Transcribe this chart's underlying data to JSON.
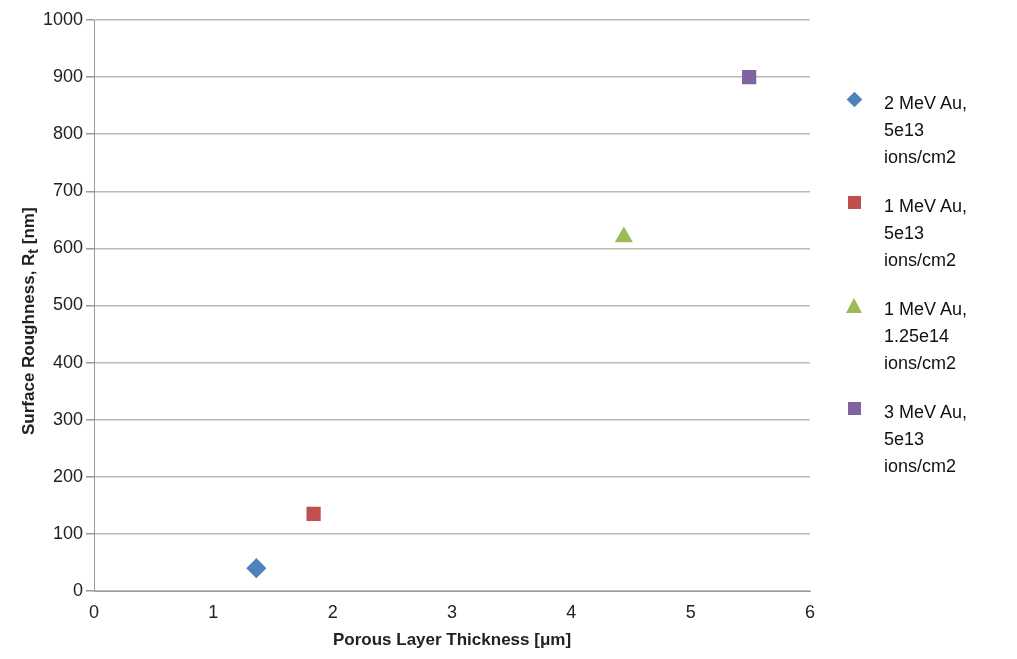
{
  "chart_data": {
    "type": "scatter",
    "xlabel": "Porous Layer Thickness [μm]",
    "ylabel": "Surface Roughness, R$_{t}$  [nm]",
    "xlim": [
      0,
      6
    ],
    "xticks": [
      0,
      1,
      2,
      3,
      4,
      5,
      6
    ],
    "ylim": [
      0,
      1000
    ],
    "yticks": [
      0,
      100,
      200,
      300,
      400,
      500,
      600,
      700,
      800,
      900,
      1000
    ],
    "grid": "y",
    "legend": "right",
    "series": [
      {
        "name": "2 MeV Au, 5e13 ions/cm2",
        "color": "#4f81bd",
        "marker": "diamond",
        "x": [
          1.36
        ],
        "values": [
          40
        ]
      },
      {
        "name": "1 MeV Au, 5e13 ions/cm2",
        "color": "#c0504d",
        "marker": "square",
        "x": [
          1.84
        ],
        "values": [
          135
        ]
      },
      {
        "name": "1 MeV Au, 1.25e14 ions/cm2",
        "color": "#9bbb59",
        "marker": "triangle",
        "x": [
          4.44
        ],
        "values": [
          620
        ]
      },
      {
        "name": "3 MeV Au, 5e13 ions/cm2",
        "color": "#8064a2",
        "marker": "square",
        "x": [
          5.49
        ],
        "values": [
          900
        ]
      }
    ]
  }
}
